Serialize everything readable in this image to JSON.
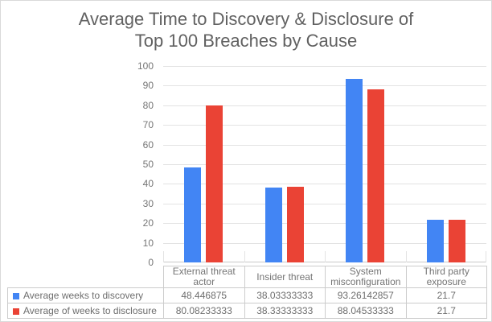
{
  "title_lines": [
    "Average Time to Discovery & Disclosure of",
    "Top 100 Breaches by Cause"
  ],
  "chart_data": {
    "type": "bar",
    "title": "Average Time to Discovery & Disclosure of Top 100 Breaches by Cause",
    "categories": [
      "External threat actor",
      "Insider threat",
      "System misconfiguration",
      "Third party exposure"
    ],
    "series": [
      {
        "name": "Average weeks to discovery",
        "color": "#4285F4",
        "values": [
          48.446875,
          38.03333333,
          93.26142857,
          21.7
        ]
      },
      {
        "name": "Average of weeks to disclosure",
        "color": "#EA4335",
        "values": [
          80.08233333,
          38.33333333,
          88.04533333,
          21.7
        ]
      }
    ],
    "ylim": [
      0,
      100
    ],
    "yticks": [
      0,
      10,
      20,
      30,
      40,
      50,
      60,
      70,
      80,
      90,
      100
    ],
    "grid": true,
    "legend_position": "data-table-left-column"
  },
  "table": {
    "rows": [
      {
        "label": "Average weeks to discovery",
        "swatch_color": "#4285F4",
        "cells": [
          "48.446875",
          "38.03333333",
          "93.26142857",
          "21.7"
        ]
      },
      {
        "label": "Average of weeks to disclosure",
        "swatch_color": "#EA4335",
        "cells": [
          "80.08233333",
          "38.33333333",
          "88.04533333",
          "21.7"
        ]
      }
    ]
  }
}
